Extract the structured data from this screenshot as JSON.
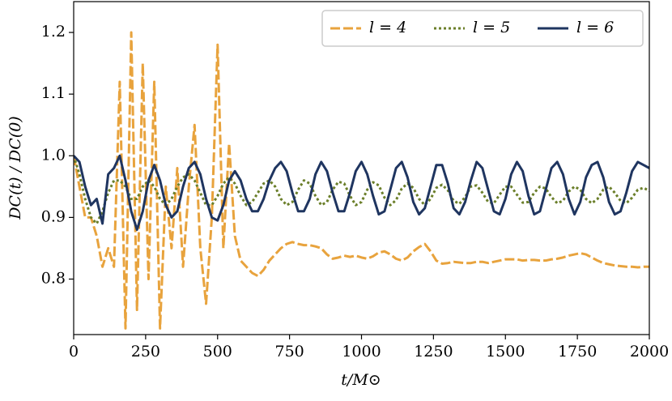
{
  "chart_data": {
    "type": "line",
    "xlabel": "t/M⊙",
    "ylabel": "DC(t) / DC(0)",
    "x": [
      0,
      20,
      40,
      60,
      80,
      100,
      120,
      140,
      160,
      180,
      200,
      220,
      240,
      260,
      280,
      300,
      320,
      340,
      360,
      380,
      400,
      420,
      440,
      460,
      480,
      500,
      520,
      540,
      560,
      580,
      600,
      620,
      640,
      660,
      680,
      700,
      720,
      740,
      760,
      780,
      800,
      820,
      840,
      860,
      880,
      900,
      920,
      940,
      960,
      980,
      1000,
      1020,
      1040,
      1060,
      1080,
      1100,
      1120,
      1140,
      1160,
      1180,
      1200,
      1220,
      1240,
      1260,
      1280,
      1300,
      1320,
      1340,
      1360,
      1380,
      1400,
      1420,
      1440,
      1460,
      1480,
      1500,
      1520,
      1540,
      1560,
      1580,
      1600,
      1620,
      1640,
      1660,
      1680,
      1700,
      1720,
      1740,
      1760,
      1780,
      1800,
      1820,
      1840,
      1860,
      1880,
      1900,
      1920,
      1940,
      1960,
      1980,
      2000
    ],
    "series": [
      {
        "name": "l = 4",
        "color": "#e8a33d",
        "linestyle": "dashed",
        "values": [
          1.0,
          0.95,
          0.9,
          0.9,
          0.87,
          0.82,
          0.85,
          0.82,
          1.12,
          0.72,
          1.2,
          0.75,
          1.15,
          0.8,
          1.12,
          0.72,
          0.95,
          0.85,
          0.98,
          0.82,
          0.95,
          1.05,
          0.85,
          0.76,
          0.9,
          1.18,
          0.85,
          1.02,
          0.87,
          0.83,
          0.82,
          0.81,
          0.805,
          0.815,
          0.83,
          0.84,
          0.85,
          0.857,
          0.86,
          0.857,
          0.855,
          0.855,
          0.853,
          0.85,
          0.84,
          0.833,
          0.835,
          0.838,
          0.836,
          0.838,
          0.835,
          0.833,
          0.837,
          0.843,
          0.845,
          0.84,
          0.833,
          0.83,
          0.835,
          0.845,
          0.852,
          0.857,
          0.845,
          0.83,
          0.825,
          0.826,
          0.828,
          0.827,
          0.826,
          0.826,
          0.828,
          0.828,
          0.826,
          0.828,
          0.83,
          0.832,
          0.832,
          0.832,
          0.83,
          0.831,
          0.831,
          0.83,
          0.83,
          0.832,
          0.833,
          0.835,
          0.838,
          0.84,
          0.842,
          0.84,
          0.835,
          0.83,
          0.826,
          0.824,
          0.822,
          0.821,
          0.82,
          0.82,
          0.819,
          0.82,
          0.82
        ]
      },
      {
        "name": "l = 5",
        "color": "#6b7f2a",
        "linestyle": "dotted",
        "values": [
          1.0,
          0.97,
          0.93,
          0.9,
          0.89,
          0.91,
          0.94,
          0.96,
          0.96,
          0.95,
          0.93,
          0.93,
          0.95,
          0.96,
          0.95,
          0.93,
          0.92,
          0.93,
          0.95,
          0.965,
          0.97,
          0.96,
          0.94,
          0.92,
          0.92,
          0.935,
          0.955,
          0.965,
          0.955,
          0.935,
          0.92,
          0.925,
          0.94,
          0.955,
          0.96,
          0.95,
          0.93,
          0.92,
          0.925,
          0.945,
          0.96,
          0.955,
          0.935,
          0.92,
          0.925,
          0.945,
          0.958,
          0.955,
          0.935,
          0.92,
          0.925,
          0.945,
          0.957,
          0.952,
          0.932,
          0.92,
          0.928,
          0.947,
          0.955,
          0.948,
          0.93,
          0.92,
          0.93,
          0.948,
          0.953,
          0.944,
          0.927,
          0.922,
          0.933,
          0.95,
          0.952,
          0.94,
          0.925,
          0.923,
          0.937,
          0.95,
          0.95,
          0.937,
          0.924,
          0.925,
          0.94,
          0.95,
          0.947,
          0.933,
          0.923,
          0.927,
          0.942,
          0.95,
          0.945,
          0.93,
          0.923,
          0.93,
          0.945,
          0.95,
          0.94,
          0.927,
          0.923,
          0.932,
          0.945,
          0.948,
          0.943
        ]
      },
      {
        "name": "l = 6",
        "color": "#1f3560",
        "linestyle": "solid",
        "values": [
          1.0,
          0.99,
          0.95,
          0.92,
          0.93,
          0.89,
          0.97,
          0.98,
          1.0,
          0.96,
          0.91,
          0.88,
          0.91,
          0.96,
          0.985,
          0.96,
          0.92,
          0.9,
          0.91,
          0.95,
          0.98,
          0.99,
          0.97,
          0.93,
          0.9,
          0.895,
          0.92,
          0.96,
          0.975,
          0.96,
          0.93,
          0.91,
          0.91,
          0.93,
          0.96,
          0.98,
          0.99,
          0.975,
          0.94,
          0.91,
          0.91,
          0.93,
          0.97,
          0.99,
          0.975,
          0.94,
          0.91,
          0.91,
          0.94,
          0.975,
          0.99,
          0.97,
          0.935,
          0.905,
          0.91,
          0.945,
          0.98,
          0.99,
          0.965,
          0.925,
          0.905,
          0.915,
          0.95,
          0.985,
          0.985,
          0.955,
          0.915,
          0.905,
          0.925,
          0.96,
          0.99,
          0.98,
          0.945,
          0.91,
          0.905,
          0.93,
          0.97,
          0.99,
          0.975,
          0.935,
          0.905,
          0.91,
          0.945,
          0.98,
          0.99,
          0.97,
          0.93,
          0.905,
          0.925,
          0.965,
          0.985,
          0.99,
          0.965,
          0.925,
          0.905,
          0.91,
          0.94,
          0.975,
          0.99,
          0.985,
          0.98
        ]
      }
    ],
    "xlim": [
      0,
      2000
    ],
    "xticks": [
      0,
      250,
      500,
      750,
      1000,
      1250,
      1500,
      1750,
      2000
    ],
    "ylim": [
      0.71,
      1.25
    ],
    "yticks": [
      0.8,
      0.9,
      {
        "value": 1,
        "label": "1.0"
      },
      1.1,
      1.2
    ],
    "legend": "upper right"
  }
}
